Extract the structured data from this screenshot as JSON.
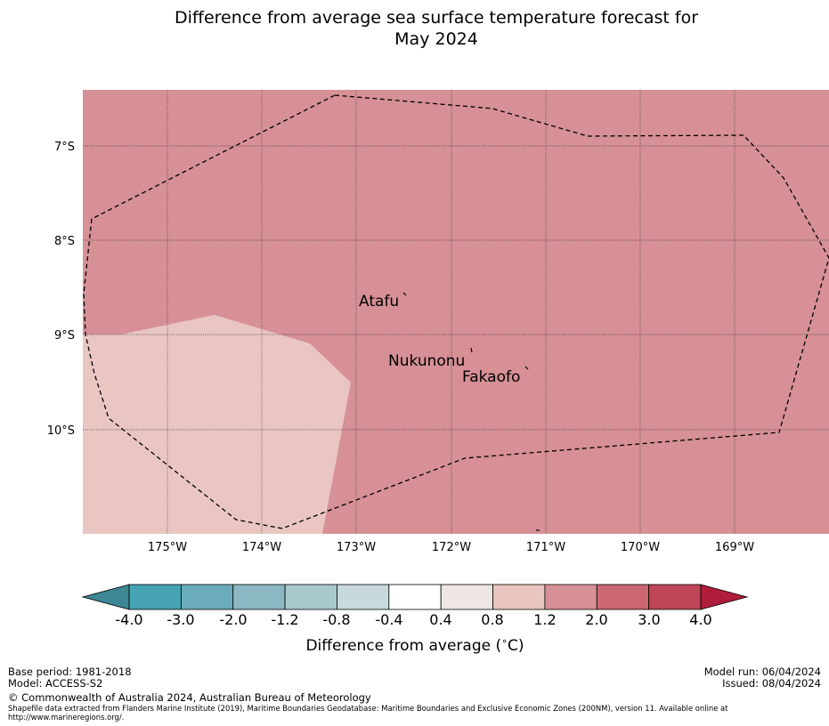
{
  "title": {
    "line1": "Difference from average sea surface temperature forecast for",
    "line2": "May 2024"
  },
  "map": {
    "lat_labels": [
      "7°S",
      "8°S",
      "9°S",
      "10°S"
    ],
    "lon_labels": [
      "175°W",
      "174°W",
      "173°W",
      "172°W",
      "171°W",
      "170°W",
      "169°W"
    ],
    "place_labels": [
      "Atafu",
      "Nukunonu",
      "Fakaofo"
    ],
    "fill_colors": {
      "warm": "#d69096",
      "mild": "#e9c6c1"
    },
    "boundary": "dashed"
  },
  "colorbar": {
    "ticks": [
      "-4.0",
      "-3.0",
      "-2.0",
      "-1.2",
      "-0.8",
      "-0.4",
      "0.4",
      "0.8",
      "1.2",
      "2.0",
      "3.0",
      "4.0"
    ],
    "colors": [
      "#45a3b4",
      "#6aacbb",
      "#8bb8c2",
      "#a9c8cd",
      "#c7d9da",
      "#ffffff",
      "#ede6e3",
      "#e8c5be",
      "#d69096",
      "#cb6771",
      "#bf4657"
    ],
    "under_color": "#3d8694",
    "over_color": "#b01c3a",
    "label": "Difference from average (",
    "label_degree": "∘",
    "label_unit": "C)"
  },
  "footer": {
    "base_period": "Base period: 1981-2018",
    "model": "Model: ACCESS-S2",
    "model_run": "Model run: 06/04/2024",
    "issued": "Issued: 08/04/2024",
    "copyright": "© Commonwealth of Australia 2024, Australian Bureau of Meteorology",
    "shapefile": "Shapefile data extracted from Flanders Marine Institute (2019), Maritime Boundaries Geodatabase: Maritime Boundaries and Exclusive Economic Zones (200NM), version 11. Available online at http://www.marineregions.org/."
  }
}
